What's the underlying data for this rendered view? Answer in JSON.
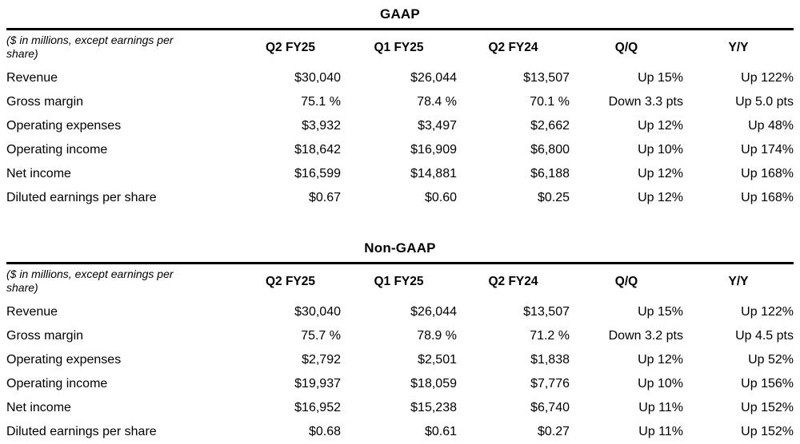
{
  "colors": {
    "background": "#ffffff",
    "text": "#000000",
    "rule": "#000000"
  },
  "tables": [
    {
      "title": "GAAP",
      "caption": "($ in millions, except earnings per share)",
      "columns": [
        "Q2 FY25",
        "Q1 FY25",
        "Q2 FY24",
        "Q/Q",
        "Y/Y"
      ],
      "rows": [
        {
          "label": "Revenue",
          "values": [
            "$30,040",
            "$26,044",
            "$13,507",
            "Up 15%",
            "Up 122%"
          ]
        },
        {
          "label": "Gross margin",
          "values": [
            "75.1 %",
            "78.4 %",
            "70.1 %",
            "Down 3.3 pts",
            "Up 5.0 pts"
          ]
        },
        {
          "label": "Operating expenses",
          "values": [
            "$3,932",
            "$3,497",
            "$2,662",
            "Up 12%",
            "Up 48%"
          ]
        },
        {
          "label": "Operating income",
          "values": [
            "$18,642",
            "$16,909",
            "$6,800",
            "Up 10%",
            "Up 174%"
          ]
        },
        {
          "label": "Net income",
          "values": [
            "$16,599",
            "$14,881",
            "$6,188",
            "Up 12%",
            "Up 168%"
          ]
        },
        {
          "label": "Diluted earnings per share",
          "values": [
            "$0.67",
            "$0.60",
            "$0.25",
            "Up 12%",
            "Up 168%"
          ]
        }
      ]
    },
    {
      "title": "Non-GAAP",
      "caption": "($ in millions, except earnings per share)",
      "columns": [
        "Q2 FY25",
        "Q1 FY25",
        "Q2 FY24",
        "Q/Q",
        "Y/Y"
      ],
      "rows": [
        {
          "label": "Revenue",
          "values": [
            "$30,040",
            "$26,044",
            "$13,507",
            "Up 15%",
            "Up 122%"
          ]
        },
        {
          "label": "Gross margin",
          "values": [
            "75.7 %",
            "78.9 %",
            "71.2 %",
            "Down 3.2 pts",
            "Up 4.5 pts"
          ]
        },
        {
          "label": "Operating expenses",
          "values": [
            "$2,792",
            "$2,501",
            "$1,838",
            "Up 12%",
            "Up 52%"
          ]
        },
        {
          "label": "Operating income",
          "values": [
            "$19,937",
            "$18,059",
            "$7,776",
            "Up 10%",
            "Up 156%"
          ]
        },
        {
          "label": "Net income",
          "values": [
            "$16,952",
            "$15,238",
            "$6,740",
            "Up 11%",
            "Up 152%"
          ]
        },
        {
          "label": "Diluted earnings per share",
          "values": [
            "$0.68",
            "$0.61",
            "$0.27",
            "Up 11%",
            "Up 152%"
          ]
        }
      ]
    }
  ]
}
